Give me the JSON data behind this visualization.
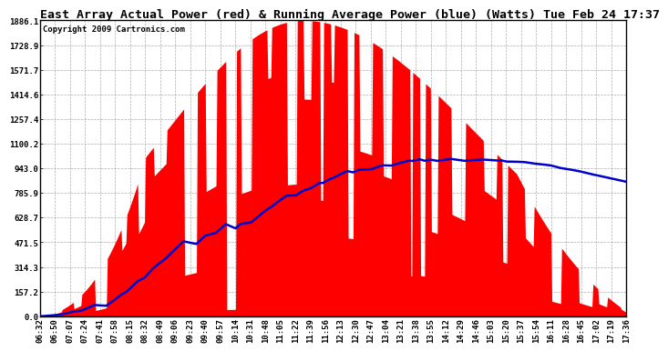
{
  "title": "East Array Actual Power (red) & Running Average Power (blue) (Watts) Tue Feb 24 17:37",
  "copyright": "Copyright 2009 Cartronics.com",
  "ylabel_values": [
    0.0,
    157.2,
    314.3,
    471.5,
    628.7,
    785.9,
    943.0,
    1100.2,
    1257.4,
    1414.6,
    1571.7,
    1728.9,
    1886.1
  ],
  "ymax": 1886.1,
  "bg_color": "#ffffff",
  "plot_bg_color": "#ffffff",
  "grid_color": "#999999",
  "red_color": "#ff0000",
  "blue_color": "#0000cc",
  "title_fontsize": 9.5,
  "copyright_fontsize": 6.5,
  "tick_fontsize": 6.5,
  "xtick_labels": [
    "06:32",
    "06:50",
    "07:07",
    "07:24",
    "07:41",
    "07:58",
    "08:15",
    "08:32",
    "08:49",
    "09:06",
    "09:23",
    "09:40",
    "09:57",
    "10:14",
    "10:31",
    "10:48",
    "11:05",
    "11:22",
    "11:39",
    "11:56",
    "12:13",
    "12:30",
    "12:47",
    "13:04",
    "13:21",
    "13:38",
    "13:55",
    "14:12",
    "14:29",
    "14:46",
    "15:03",
    "15:20",
    "15:37",
    "15:54",
    "16:11",
    "16:28",
    "16:45",
    "17:02",
    "17:19",
    "17:36"
  ]
}
